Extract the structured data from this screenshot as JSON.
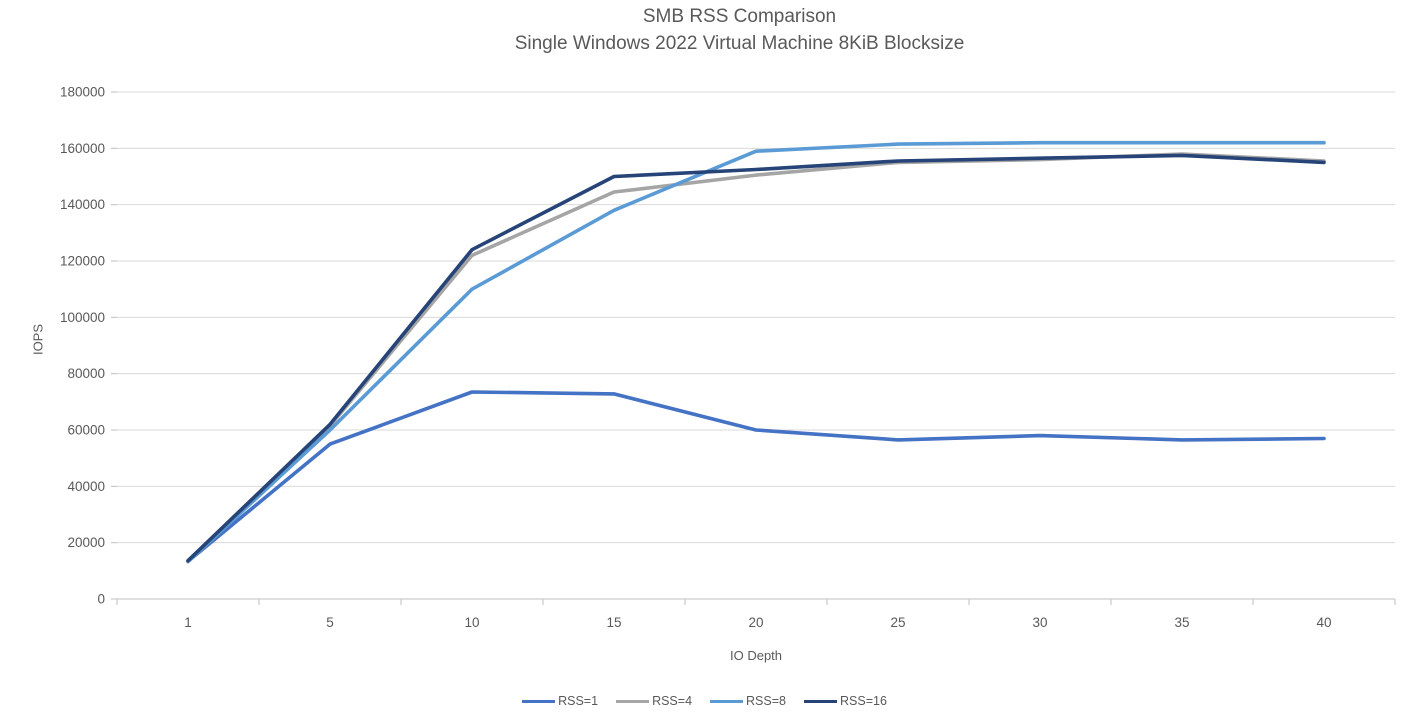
{
  "chart_data": {
    "type": "line",
    "title": "SMB RSS Comparison",
    "subtitle": "Single Windows 2022 Virtual Machine 8KiB Blocksize",
    "xlabel": "IO Depth",
    "ylabel": "IOPS",
    "categories": [
      "1",
      "5",
      "10",
      "15",
      "20",
      "25",
      "30",
      "35",
      "40"
    ],
    "ylim": [
      0,
      180000
    ],
    "ytick_step": 20000,
    "grid": "horizontal",
    "legend_position": "bottom",
    "series": [
      {
        "name": "RSS=1",
        "color": "#4472C4",
        "values": [
          13400,
          55000,
          73500,
          72800,
          60000,
          56500,
          58000,
          56500,
          57000
        ]
      },
      {
        "name": "RSS=4",
        "color": "#A5A5A5",
        "values": [
          13500,
          61500,
          122000,
          144500,
          150500,
          155000,
          156000,
          158000,
          155500
        ]
      },
      {
        "name": "RSS=8",
        "color": "#5B9BD5",
        "values": [
          13300,
          60000,
          110000,
          138000,
          159000,
          161500,
          162000,
          162000,
          162000
        ]
      },
      {
        "name": "RSS=16",
        "color": "#264478",
        "values": [
          13600,
          62000,
          124000,
          150000,
          152500,
          155500,
          156500,
          157500,
          155000
        ]
      }
    ],
    "colors": {
      "axis": "#BFBFBF",
      "gridline": "#D9D9D9",
      "text": "#595959"
    }
  }
}
